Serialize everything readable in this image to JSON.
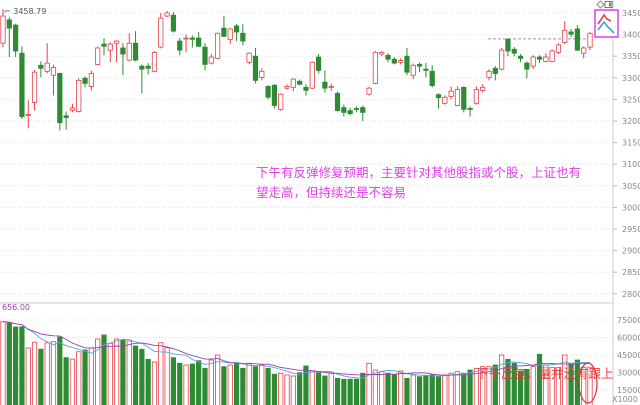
{
  "chart_data": {
    "type": "candlestick",
    "title": "",
    "price_axis": {
      "ticks": [
        3450,
        3400,
        3350,
        3300,
        3250,
        3200,
        3150,
        3100,
        3050,
        3000,
        2950,
        2900,
        2850,
        2800
      ],
      "range": [
        2780,
        3465
      ]
    },
    "volume_axis": {
      "ticks": [
        75000,
        60000,
        45000,
        30000,
        15000
      ],
      "unit_label": "X1000"
    },
    "high_label": "3458.79",
    "volume_max_label": "656.00",
    "reference_line_price": 3390,
    "grid": true,
    "candles_ohlc_order": "open,high,low,close",
    "candles": [
      [
        3380,
        3459,
        3371,
        3443
      ],
      [
        3434,
        3440,
        3348,
        3415
      ],
      [
        3422,
        3425,
        3348,
        3362
      ],
      [
        3357,
        3373,
        3205,
        3210
      ],
      [
        3215,
        3248,
        3183,
        3215
      ],
      [
        3243,
        3318,
        3224,
        3313
      ],
      [
        3329,
        3338,
        3301,
        3322
      ],
      [
        3315,
        3380,
        3310,
        3334
      ],
      [
        3306,
        3330,
        3259,
        3324
      ],
      [
        3310,
        3312,
        3178,
        3196
      ],
      [
        3212,
        3222,
        3180,
        3208
      ],
      [
        3225,
        3240,
        3220,
        3230
      ],
      [
        3222,
        3299,
        3220,
        3294
      ],
      [
        3299,
        3303,
        3278,
        3287
      ],
      [
        3280,
        3317,
        3271,
        3310
      ],
      [
        3331,
        3372,
        3329,
        3369
      ],
      [
        3378,
        3392,
        3352,
        3373
      ],
      [
        3364,
        3382,
        3336,
        3378
      ],
      [
        3380,
        3387,
        3336,
        3385
      ],
      [
        3369,
        3380,
        3306,
        3355
      ],
      [
        3341,
        3403,
        3338,
        3380
      ],
      [
        3380,
        3408,
        3338,
        3341
      ],
      [
        3327,
        3331,
        3264,
        3320
      ],
      [
        3327,
        3334,
        3308,
        3322
      ],
      [
        3315,
        3362,
        3313,
        3359
      ],
      [
        3371,
        3450,
        3368,
        3438
      ],
      [
        3443,
        3455,
        3440,
        3450
      ],
      [
        3445,
        3452,
        3405,
        3408
      ],
      [
        3385,
        3392,
        3352,
        3364
      ],
      [
        3390,
        3400,
        3359,
        3392
      ],
      [
        3392,
        3398,
        3370,
        3389
      ],
      [
        3392,
        3406,
        3371,
        3373
      ],
      [
        3371,
        3380,
        3317,
        3331
      ],
      [
        3334,
        3355,
        3331,
        3348
      ],
      [
        3345,
        3405,
        3343,
        3403
      ],
      [
        3415,
        3443,
        3394,
        3396
      ],
      [
        3389,
        3415,
        3378,
        3413
      ],
      [
        3420,
        3425,
        3385,
        3406
      ],
      [
        3403,
        3424,
        3375,
        3385
      ],
      [
        3336,
        3359,
        3331,
        3357
      ],
      [
        3350,
        3369,
        3287,
        3294
      ],
      [
        3301,
        3322,
        3294,
        3315
      ],
      [
        3280,
        3283,
        3250,
        3255
      ],
      [
        3283,
        3285,
        3229,
        3236
      ],
      [
        3227,
        3264,
        3224,
        3262
      ],
      [
        3276,
        3285,
        3273,
        3280
      ],
      [
        3278,
        3299,
        3269,
        3297
      ],
      [
        3292,
        3296,
        3283,
        3285
      ],
      [
        3278,
        3285,
        3259,
        3271
      ],
      [
        3276,
        3338,
        3274,
        3336
      ],
      [
        3348,
        3355,
        3310,
        3317
      ],
      [
        3290,
        3317,
        3266,
        3276
      ],
      [
        3278,
        3287,
        3269,
        3280
      ],
      [
        3264,
        3268,
        3222,
        3224
      ],
      [
        3231,
        3238,
        3210,
        3220
      ],
      [
        3224,
        3231,
        3213,
        3217
      ],
      [
        3229,
        3234,
        3220,
        3227
      ],
      [
        3231,
        3236,
        3200,
        3220
      ],
      [
        3262,
        3280,
        3259,
        3276
      ],
      [
        3287,
        3362,
        3285,
        3359
      ],
      [
        3355,
        3362,
        3350,
        3359
      ],
      [
        3352,
        3357,
        3336,
        3343
      ],
      [
        3343,
        3348,
        3331,
        3334
      ],
      [
        3336,
        3345,
        3331,
        3340
      ],
      [
        3350,
        3369,
        3306,
        3313
      ],
      [
        3306,
        3333,
        3297,
        3329
      ],
      [
        3331,
        3336,
        3313,
        3327
      ],
      [
        3320,
        3334,
        3301,
        3317
      ],
      [
        3315,
        3329,
        3278,
        3282
      ],
      [
        3261,
        3264,
        3229,
        3254
      ],
      [
        3241,
        3259,
        3238,
        3255
      ],
      [
        3257,
        3280,
        3250,
        3269
      ],
      [
        3236,
        3280,
        3234,
        3273
      ],
      [
        3278,
        3280,
        3220,
        3227
      ],
      [
        3229,
        3234,
        3210,
        3227
      ],
      [
        3241,
        3280,
        3238,
        3273
      ],
      [
        3271,
        3285,
        3266,
        3278
      ],
      [
        3301,
        3320,
        3294,
        3315
      ],
      [
        3322,
        3327,
        3294,
        3310
      ],
      [
        3320,
        3369,
        3317,
        3364
      ],
      [
        3389,
        3392,
        3350,
        3362
      ],
      [
        3366,
        3371,
        3350,
        3357
      ],
      [
        3350,
        3355,
        3336,
        3345
      ],
      [
        3334,
        3338,
        3299,
        3320
      ],
      [
        3327,
        3352,
        3320,
        3348
      ],
      [
        3348,
        3352,
        3334,
        3343
      ],
      [
        3338,
        3357,
        3336,
        3348
      ],
      [
        3338,
        3366,
        3336,
        3362
      ],
      [
        3359,
        3380,
        3355,
        3376
      ],
      [
        3382,
        3431,
        3378,
        3410
      ],
      [
        3406,
        3413,
        3394,
        3401
      ],
      [
        3413,
        3422,
        3362,
        3364
      ],
      [
        3357,
        3373,
        3345,
        3369
      ],
      [
        3371,
        3406,
        3364,
        3403
      ]
    ],
    "volume": [
      73500,
      72700,
      69000,
      69200,
      51000,
      56000,
      50000,
      55500,
      56400,
      60400,
      42700,
      41500,
      47800,
      49300,
      51000,
      58700,
      62100,
      55000,
      58700,
      57800,
      57000,
      52700,
      49900,
      41300,
      39000,
      55500,
      51200,
      42700,
      37900,
      36400,
      37300,
      40100,
      33600,
      40700,
      45000,
      35000,
      36400,
      37300,
      33600,
      37900,
      35000,
      36400,
      33600,
      28500,
      29300,
      27900,
      27000,
      29800,
      35600,
      31500,
      29800,
      27000,
      29300,
      25000,
      24200,
      24200,
      24200,
      29300,
      37900,
      32100,
      30700,
      29300,
      27900,
      31300,
      25000,
      27900,
      26400,
      27200,
      27900,
      26400,
      27900,
      29300,
      30700,
      29300,
      32100,
      33600,
      35000,
      35000,
      36400,
      45000,
      41300,
      37900,
      31300,
      32700,
      35000,
      45600,
      36400,
      34400,
      34400,
      45000,
      37900,
      40700,
      34400,
      34500
    ],
    "colors": {
      "up": "#e8404a",
      "down": "#2e8b34",
      "ma_short": "#a040b0",
      "ma_long": "#50a8e0"
    }
  },
  "annotations": {
    "main_note_line1": "下午有反弹修复预期，主要针对其他股指或个股，上证也有",
    "main_note_line2": "望走高，但持续还是不容易",
    "volume_note": "下午反包，量并没有跟上",
    "main_note_color": "#e040e8",
    "volume_note_color": "#e8403a"
  },
  "toolbar": {
    "icons": [
      "diamond-icon",
      "panel-icon",
      "trend-arrows-icon"
    ]
  }
}
